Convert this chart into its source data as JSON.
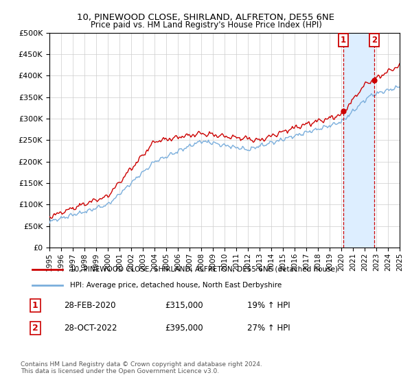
{
  "title": "10, PINEWOOD CLOSE, SHIRLAND, ALFRETON, DE55 6NE",
  "subtitle": "Price paid vs. HM Land Registry's House Price Index (HPI)",
  "legend_line1": "10, PINEWOOD CLOSE, SHIRLAND, ALFRETON, DE55 6NE (detached house)",
  "legend_line2": "HPI: Average price, detached house, North East Derbyshire",
  "transaction1_date": "28-FEB-2020",
  "transaction1_price": "£315,000",
  "transaction1_hpi": "19% ↑ HPI",
  "transaction2_date": "28-OCT-2022",
  "transaction2_price": "£395,000",
  "transaction2_hpi": "27% ↑ HPI",
  "footnote": "Contains HM Land Registry data © Crown copyright and database right 2024.\nThis data is licensed under the Open Government Licence v3.0.",
  "line1_color": "#cc0000",
  "line2_color": "#7aaedc",
  "shade_color": "#ddeeff",
  "marker1_x": 2020.17,
  "marker2_x": 2022.83,
  "ylim": [
    0,
    500000
  ],
  "xlim": [
    1995,
    2025
  ],
  "yticks": [
    0,
    50000,
    100000,
    150000,
    200000,
    250000,
    300000,
    350000,
    400000,
    450000,
    500000
  ],
  "xticks": [
    1995,
    1996,
    1997,
    1998,
    1999,
    2000,
    2001,
    2002,
    2003,
    2004,
    2005,
    2006,
    2007,
    2008,
    2009,
    2010,
    2011,
    2012,
    2013,
    2014,
    2015,
    2016,
    2017,
    2018,
    2019,
    2020,
    2021,
    2022,
    2023,
    2024,
    2025
  ]
}
